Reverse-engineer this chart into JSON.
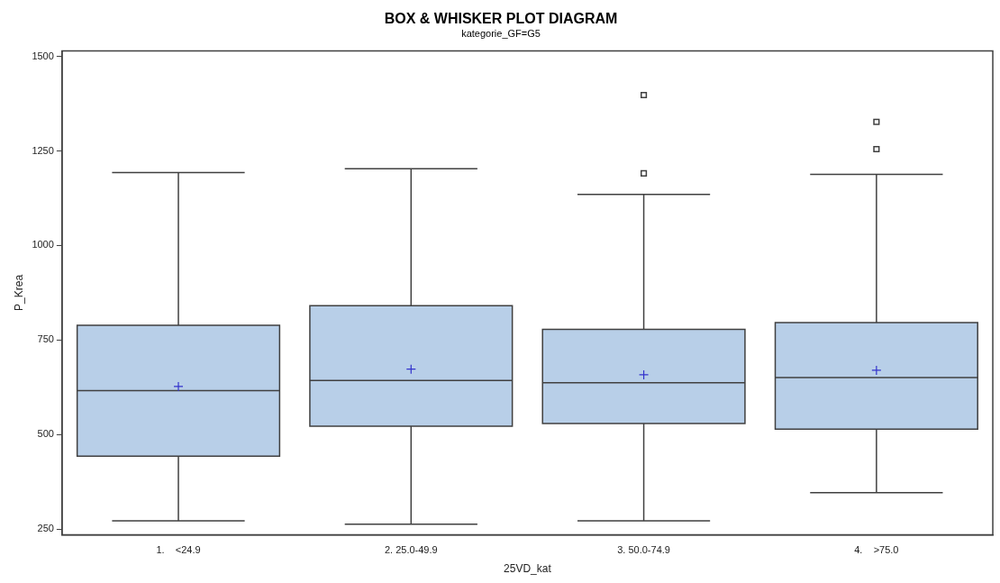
{
  "chart_data": {
    "type": "box",
    "title": "BOX & WHISKER PLOT DIAGRAM",
    "subtitle": "kategorie_GF=G5",
    "xlabel": "25VD_kat",
    "ylabel": "P_Krea",
    "categories": [
      "1.    <24.9",
      "2. 25.0-49.9",
      "3. 50.0-74.9",
      "4.    >75.0"
    ],
    "color": "#b8cfe8",
    "marker": "square",
    "grid": false,
    "legend": false,
    "ylim": [
      235,
      1515
    ],
    "yticks": [
      250,
      500,
      750,
      1000,
      1250,
      1500
    ],
    "boxes": [
      {
        "low": 272,
        "q1": 443,
        "median": 616,
        "q3": 789,
        "high": 1193,
        "mean": 627
      },
      {
        "low": 263,
        "q1": 522,
        "median": 643,
        "q3": 841,
        "high": 1203,
        "mean": 673
      },
      {
        "low": 272,
        "q1": 529,
        "median": 637,
        "q3": 778,
        "high": 1135,
        "mean": 658,
        "outliers": [
          1191,
          1398
        ]
      },
      {
        "low": 346,
        "q1": 514,
        "median": 651,
        "q3": 796,
        "high": 1188,
        "mean": 670,
        "outliers": [
          1255,
          1327
        ]
      }
    ]
  }
}
